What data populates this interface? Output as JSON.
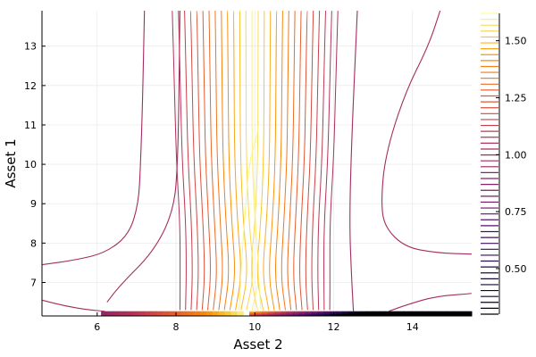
{
  "chart_data": {
    "type": "contour",
    "xlabel": "Asset 2",
    "ylabel": "Asset 1",
    "xlim": [
      4.6,
      15.5
    ],
    "ylim": [
      6.15,
      13.9
    ],
    "xticks": [
      6,
      8,
      10,
      12,
      14
    ],
    "yticks": [
      7,
      8,
      9,
      10,
      11,
      12,
      13
    ],
    "colorbar": {
      "colormap": "inferno",
      "range": [
        0.3,
        1.62
      ],
      "ticks": [
        0.5,
        0.75,
        1.0,
        1.25,
        1.5
      ],
      "tick_labels": [
        "0.50",
        "0.75",
        "1.00",
        "1.25",
        "1.50"
      ]
    },
    "grid": true,
    "legend": "none",
    "contours": {
      "outer_curves": [
        {
          "level": 1.0,
          "points": [
            [
              4.6,
              7.45
            ],
            [
              5.5,
              7.58
            ],
            [
              6.2,
              7.75
            ],
            [
              6.8,
              8.2
            ],
            [
              7.05,
              9.0
            ],
            [
              7.1,
              10.0
            ],
            [
              7.15,
              11.5
            ],
            [
              7.2,
              13.9
            ]
          ]
        },
        {
          "level": 1.0,
          "points": [
            [
              4.6,
              6.55
            ],
            [
              5.2,
              6.4
            ],
            [
              5.8,
              6.3
            ],
            [
              6.2,
              6.27
            ]
          ]
        },
        {
          "level": 1.0,
          "points": [
            [
              6.25,
              6.5
            ],
            [
              6.6,
              6.95
            ],
            [
              7.4,
              7.75
            ],
            [
              7.9,
              8.7
            ],
            [
              8.05,
              9.8
            ],
            [
              8.1,
              13.9
            ]
          ]
        },
        {
          "level": 1.0,
          "points": [
            [
              13.4,
              6.27
            ],
            [
              13.9,
              6.45
            ],
            [
              14.6,
              6.65
            ],
            [
              15.5,
              6.72
            ]
          ]
        },
        {
          "level": 1.0,
          "points": [
            [
              15.5,
              7.72
            ],
            [
              14.6,
              7.75
            ],
            [
              13.8,
              7.9
            ],
            [
              13.3,
              8.4
            ],
            [
              13.2,
              9.0
            ],
            [
              13.3,
              10.2
            ],
            [
              13.8,
              11.8
            ],
            [
              14.4,
              13.0
            ],
            [
              14.7,
              13.9
            ]
          ]
        },
        {
          "level": 1.0,
          "points": [
            [
              12.5,
              6.27
            ],
            [
              12.45,
              7.2
            ],
            [
              12.4,
              8.5
            ],
            [
              12.45,
              10.5
            ],
            [
              12.6,
              13.9
            ]
          ]
        }
      ],
      "inner_curves": {
        "count": 28,
        "x_range": [
          8.1,
          11.9
        ],
        "center_x": 9.95,
        "inner_bound_x": 9.9
      }
    }
  }
}
